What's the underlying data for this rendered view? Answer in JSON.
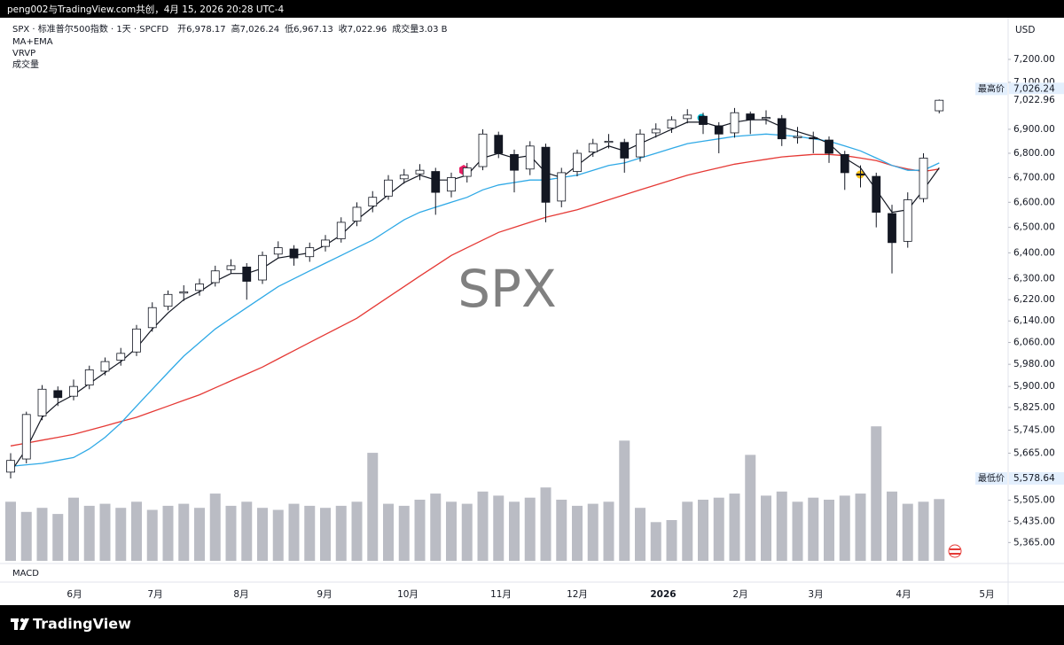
{
  "top_bar": "peng002与TradingView.com共创，4月 15, 2026 20:28 UTC-4",
  "brand": "TradingView",
  "chart_data": {
    "type": "candlestick",
    "title": "SPX · 标准普尔500指数 · 1天 · SPCFD",
    "header_values": [
      {
        "label": "开",
        "value": "6,978.17"
      },
      {
        "label": "高",
        "value": "7,026.24"
      },
      {
        "label": "低",
        "value": "6,967.13"
      },
      {
        "label": "收",
        "value": "7,022.96"
      }
    ],
    "volume_label": "成交量",
    "volume_value_label": "3.03 B",
    "indicators": [
      "MA+EMA",
      "VRVP",
      "成交量"
    ],
    "pane_label": "MACD",
    "watermark": "SPX",
    "currency": "USD",
    "log_scale": true,
    "ylim": [
      5297,
      7385
    ],
    "yticks": [
      {
        "value": 7200,
        "label": "7,200.00"
      },
      {
        "value": 7100,
        "label": "7,100.00"
      },
      {
        "value": 6900,
        "label": "6,900.00"
      },
      {
        "value": 6800,
        "label": "6,800.00"
      },
      {
        "value": 6700,
        "label": "6,700.00"
      },
      {
        "value": 6600,
        "label": "6,600.00"
      },
      {
        "value": 6500,
        "label": "6,500.00"
      },
      {
        "value": 6400,
        "label": "6,400.00"
      },
      {
        "value": 6300,
        "label": "6,300.00"
      },
      {
        "value": 6220,
        "label": "6,220.00"
      },
      {
        "value": 6140,
        "label": "6,140.00"
      },
      {
        "value": 6060,
        "label": "6,060.00"
      },
      {
        "value": 5980,
        "label": "5,980.00"
      },
      {
        "value": 5900,
        "label": "5,900.00"
      },
      {
        "value": 5825,
        "label": "5,825.00"
      },
      {
        "value": 5745,
        "label": "5,745.00"
      },
      {
        "value": 5665,
        "label": "5,665.00"
      },
      {
        "value": 5505,
        "label": "5,505.00"
      },
      {
        "value": 5435,
        "label": "5,435.00"
      },
      {
        "value": 5365,
        "label": "5,365.00"
      }
    ],
    "high_marker": {
      "label": "最高价",
      "value": 7026.24,
      "value_label": "7,026.24"
    },
    "last_price": {
      "value": 7022.96,
      "value_label": "7,022.96"
    },
    "low_marker": {
      "label": "最低价",
      "value": 5578.64,
      "value_label": "5,578.64"
    },
    "time_labels": [
      "6月",
      "7月",
      "8月",
      "9月",
      "10月",
      "11月",
      "12月",
      "2026",
      "2月",
      "3月",
      "4月",
      "5月"
    ],
    "up_color": "#ffffff",
    "down_color": "#131722",
    "volume_color": "#b2b5be",
    "candles": [
      [
        5600,
        5665,
        5578.64,
        5640
      ],
      [
        5645,
        5810,
        5630,
        5800
      ],
      [
        5795,
        5905,
        5780,
        5890
      ],
      [
        5885,
        5900,
        5830,
        5860
      ],
      [
        5865,
        5925,
        5850,
        5900
      ],
      [
        5905,
        5975,
        5890,
        5960
      ],
      [
        5955,
        6005,
        5940,
        5990
      ],
      [
        5995,
        6040,
        5975,
        6020
      ],
      [
        6025,
        6125,
        6010,
        6110
      ],
      [
        6115,
        6210,
        6100,
        6190
      ],
      [
        6195,
        6255,
        6180,
        6240
      ],
      [
        6245,
        6275,
        6215,
        6250
      ],
      [
        6255,
        6300,
        6235,
        6280
      ],
      [
        6285,
        6350,
        6270,
        6330
      ],
      [
        6335,
        6375,
        6320,
        6350
      ],
      [
        6345,
        6360,
        6220,
        6290
      ],
      [
        6295,
        6405,
        6280,
        6390
      ],
      [
        6395,
        6445,
        6380,
        6420
      ],
      [
        6415,
        6430,
        6350,
        6380
      ],
      [
        6385,
        6440,
        6365,
        6420
      ],
      [
        6425,
        6470,
        6405,
        6450
      ],
      [
        6455,
        6540,
        6440,
        6520
      ],
      [
        6525,
        6600,
        6505,
        6580
      ],
      [
        6585,
        6645,
        6560,
        6620
      ],
      [
        6625,
        6710,
        6610,
        6690
      ],
      [
        6695,
        6735,
        6675,
        6710
      ],
      [
        6715,
        6755,
        6690,
        6730
      ],
      [
        6725,
        6740,
        6550,
        6640
      ],
      [
        6645,
        6720,
        6620,
        6700
      ],
      [
        6705,
        6760,
        6680,
        6740
      ],
      [
        6745,
        6900,
        6730,
        6880
      ],
      [
        6875,
        6890,
        6780,
        6800
      ],
      [
        6795,
        6815,
        6640,
        6730
      ],
      [
        6735,
        6850,
        6710,
        6830
      ],
      [
        6825,
        6840,
        6520,
        6600
      ],
      [
        6605,
        6740,
        6580,
        6720
      ],
      [
        6725,
        6815,
        6705,
        6800
      ],
      [
        6805,
        6860,
        6785,
        6840
      ],
      [
        6845,
        6880,
        6820,
        6850
      ],
      [
        6845,
        6860,
        6720,
        6780
      ],
      [
        6785,
        6900,
        6765,
        6880
      ],
      [
        6885,
        6925,
        6865,
        6900
      ],
      [
        6905,
        6955,
        6885,
        6940
      ],
      [
        6945,
        6985,
        6925,
        6960
      ],
      [
        6955,
        6970,
        6880,
        6920
      ],
      [
        6915,
        6930,
        6800,
        6880
      ],
      [
        6885,
        6990,
        6865,
        6970
      ],
      [
        6965,
        6975,
        6880,
        6940
      ],
      [
        6945,
        6980,
        6920,
        6950
      ],
      [
        6945,
        6960,
        6830,
        6860
      ],
      [
        6865,
        6910,
        6840,
        6870
      ],
      [
        6865,
        6890,
        6800,
        6860
      ],
      [
        6855,
        6870,
        6760,
        6800
      ],
      [
        6795,
        6810,
        6650,
        6720
      ],
      [
        6715,
        6750,
        6660,
        6710
      ],
      [
        6705,
        6720,
        6500,
        6560
      ],
      [
        6555,
        6590,
        6320,
        6440
      ],
      [
        6445,
        6640,
        6420,
        6610
      ],
      [
        6615,
        6800,
        6600,
        6780
      ],
      [
        6978.17,
        7026.24,
        6967.13,
        7022.96
      ]
    ],
    "volumes": [
      2.9,
      2.4,
      2.6,
      2.3,
      3.1,
      2.7,
      2.8,
      2.6,
      2.9,
      2.5,
      2.7,
      2.8,
      2.6,
      3.3,
      2.7,
      2.9,
      2.6,
      2.5,
      2.8,
      2.7,
      2.6,
      2.7,
      2.9,
      5.3,
      2.8,
      2.7,
      3.0,
      3.3,
      2.9,
      2.8,
      3.4,
      3.2,
      2.9,
      3.1,
      3.6,
      3.0,
      2.7,
      2.8,
      2.9,
      5.9,
      2.6,
      1.9,
      2.0,
      2.9,
      3.0,
      3.1,
      3.3,
      5.2,
      3.2,
      3.4,
      2.9,
      3.1,
      3.0,
      3.2,
      3.3,
      6.6,
      3.4,
      2.8,
      2.9,
      3.03
    ],
    "series": [
      {
        "color": "#e53935",
        "values": [
          5690,
          5700,
          5710,
          5720,
          5730,
          5745,
          5760,
          5775,
          5790,
          5810,
          5830,
          5850,
          5870,
          5895,
          5920,
          5945,
          5970,
          6000,
          6030,
          6060,
          6090,
          6120,
          6150,
          6190,
          6230,
          6270,
          6310,
          6350,
          6390,
          6420,
          6450,
          6480,
          6500,
          6520,
          6540,
          6555,
          6570,
          6590,
          6610,
          6630,
          6650,
          6670,
          6690,
          6710,
          6725,
          6740,
          6755,
          6765,
          6775,
          6785,
          6790,
          6795,
          6795,
          6790,
          6780,
          6770,
          6750,
          6735,
          6725,
          6735
        ]
      },
      {
        "color": "#2fa9e6",
        "values": [
          5620,
          5625,
          5630,
          5640,
          5650,
          5680,
          5720,
          5770,
          5830,
          5890,
          5950,
          6010,
          6060,
          6110,
          6150,
          6190,
          6230,
          6270,
          6300,
          6330,
          6360,
          6390,
          6420,
          6450,
          6490,
          6530,
          6560,
          6580,
          6600,
          6620,
          6650,
          6670,
          6680,
          6690,
          6690,
          6700,
          6710,
          6730,
          6750,
          6760,
          6780,
          6800,
          6820,
          6840,
          6850,
          6860,
          6870,
          6875,
          6880,
          6875,
          6870,
          6860,
          6850,
          6830,
          6810,
          6780,
          6750,
          6730,
          6730,
          6760
        ]
      },
      {
        "color": "#131722",
        "values": [
          5600,
          5680,
          5790,
          5840,
          5870,
          5910,
          5950,
          5990,
          6040,
          6110,
          6170,
          6220,
          6250,
          6290,
          6320,
          6320,
          6340,
          6380,
          6390,
          6400,
          6430,
          6470,
          6530,
          6580,
          6630,
          6680,
          6710,
          6690,
          6690,
          6710,
          6780,
          6800,
          6780,
          6790,
          6720,
          6700,
          6750,
          6800,
          6830,
          6810,
          6840,
          6870,
          6900,
          6930,
          6930,
          6910,
          6930,
          6940,
          6940,
          6910,
          6890,
          6870,
          6840,
          6780,
          6740,
          6650,
          6560,
          6570,
          6650,
          6740
        ]
      }
    ]
  }
}
